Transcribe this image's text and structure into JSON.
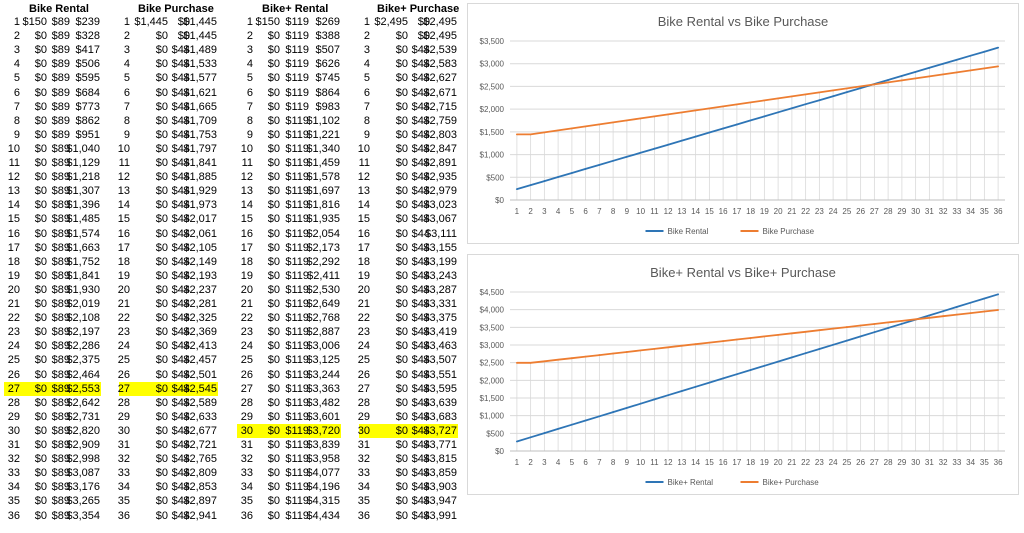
{
  "tables": [
    {
      "title": "Bike Rental",
      "highlight": [
        27
      ],
      "rows": [
        [
          "1",
          "$150",
          "$89",
          "$239"
        ],
        [
          "2",
          "$0",
          "$89",
          "$328"
        ],
        [
          "3",
          "$0",
          "$89",
          "$417"
        ],
        [
          "4",
          "$0",
          "$89",
          "$506"
        ],
        [
          "5",
          "$0",
          "$89",
          "$595"
        ],
        [
          "6",
          "$0",
          "$89",
          "$684"
        ],
        [
          "7",
          "$0",
          "$89",
          "$773"
        ],
        [
          "8",
          "$0",
          "$89",
          "$862"
        ],
        [
          "9",
          "$0",
          "$89",
          "$951"
        ],
        [
          "10",
          "$0",
          "$89",
          "$1,040"
        ],
        [
          "11",
          "$0",
          "$89",
          "$1,129"
        ],
        [
          "12",
          "$0",
          "$89",
          "$1,218"
        ],
        [
          "13",
          "$0",
          "$89",
          "$1,307"
        ],
        [
          "14",
          "$0",
          "$89",
          "$1,396"
        ],
        [
          "15",
          "$0",
          "$89",
          "$1,485"
        ],
        [
          "16",
          "$0",
          "$89",
          "$1,574"
        ],
        [
          "17",
          "$0",
          "$89",
          "$1,663"
        ],
        [
          "18",
          "$0",
          "$89",
          "$1,752"
        ],
        [
          "19",
          "$0",
          "$89",
          "$1,841"
        ],
        [
          "20",
          "$0",
          "$89",
          "$1,930"
        ],
        [
          "21",
          "$0",
          "$89",
          "$2,019"
        ],
        [
          "22",
          "$0",
          "$89",
          "$2,108"
        ],
        [
          "23",
          "$0",
          "$89",
          "$2,197"
        ],
        [
          "24",
          "$0",
          "$89",
          "$2,286"
        ],
        [
          "25",
          "$0",
          "$89",
          "$2,375"
        ],
        [
          "26",
          "$0",
          "$89",
          "$2,464"
        ],
        [
          "27",
          "$0",
          "$89",
          "$2,553"
        ],
        [
          "28",
          "$0",
          "$89",
          "$2,642"
        ],
        [
          "29",
          "$0",
          "$89",
          "$2,731"
        ],
        [
          "30",
          "$0",
          "$89",
          "$2,820"
        ],
        [
          "31",
          "$0",
          "$89",
          "$2,909"
        ],
        [
          "32",
          "$0",
          "$89",
          "$2,998"
        ],
        [
          "33",
          "$0",
          "$89",
          "$3,087"
        ],
        [
          "34",
          "$0",
          "$89",
          "$3,176"
        ],
        [
          "35",
          "$0",
          "$89",
          "$3,265"
        ],
        [
          "36",
          "$0",
          "$89",
          "$3,354"
        ]
      ]
    },
    {
      "title": "Bike Purchase",
      "highlight": [
        27
      ],
      "rows": [
        [
          "1",
          "$1,445",
          "$0",
          "$1,445"
        ],
        [
          "2",
          "$0",
          "$0",
          "$1,445"
        ],
        [
          "3",
          "$0",
          "$44",
          "$1,489"
        ],
        [
          "4",
          "$0",
          "$44",
          "$1,533"
        ],
        [
          "5",
          "$0",
          "$44",
          "$1,577"
        ],
        [
          "6",
          "$0",
          "$44",
          "$1,621"
        ],
        [
          "7",
          "$0",
          "$44",
          "$1,665"
        ],
        [
          "8",
          "$0",
          "$44",
          "$1,709"
        ],
        [
          "9",
          "$0",
          "$44",
          "$1,753"
        ],
        [
          "10",
          "$0",
          "$44",
          "$1,797"
        ],
        [
          "11",
          "$0",
          "$44",
          "$1,841"
        ],
        [
          "12",
          "$0",
          "$44",
          "$1,885"
        ],
        [
          "13",
          "$0",
          "$44",
          "$1,929"
        ],
        [
          "14",
          "$0",
          "$44",
          "$1,973"
        ],
        [
          "15",
          "$0",
          "$44",
          "$2,017"
        ],
        [
          "16",
          "$0",
          "$44",
          "$2,061"
        ],
        [
          "17",
          "$0",
          "$44",
          "$2,105"
        ],
        [
          "18",
          "$0",
          "$44",
          "$2,149"
        ],
        [
          "19",
          "$0",
          "$44",
          "$2,193"
        ],
        [
          "20",
          "$0",
          "$44",
          "$2,237"
        ],
        [
          "21",
          "$0",
          "$44",
          "$2,281"
        ],
        [
          "22",
          "$0",
          "$44",
          "$2,325"
        ],
        [
          "23",
          "$0",
          "$44",
          "$2,369"
        ],
        [
          "24",
          "$0",
          "$44",
          "$2,413"
        ],
        [
          "25",
          "$0",
          "$44",
          "$2,457"
        ],
        [
          "26",
          "$0",
          "$44",
          "$2,501"
        ],
        [
          "27",
          "$0",
          "$44",
          "$2,545"
        ],
        [
          "28",
          "$0",
          "$44",
          "$2,589"
        ],
        [
          "29",
          "$0",
          "$44",
          "$2,633"
        ],
        [
          "30",
          "$0",
          "$44",
          "$2,677"
        ],
        [
          "31",
          "$0",
          "$44",
          "$2,721"
        ],
        [
          "32",
          "$0",
          "$44",
          "$2,765"
        ],
        [
          "33",
          "$0",
          "$44",
          "$2,809"
        ],
        [
          "34",
          "$0",
          "$44",
          "$2,853"
        ],
        [
          "35",
          "$0",
          "$44",
          "$2,897"
        ],
        [
          "36",
          "$0",
          "$44",
          "$2,941"
        ]
      ]
    },
    {
      "title": "Bike+ Rental",
      "highlight": [
        30
      ],
      "rows": [
        [
          "1",
          "$150",
          "$119",
          "$269"
        ],
        [
          "2",
          "$0",
          "$119",
          "$388"
        ],
        [
          "3",
          "$0",
          "$119",
          "$507"
        ],
        [
          "4",
          "$0",
          "$119",
          "$626"
        ],
        [
          "5",
          "$0",
          "$119",
          "$745"
        ],
        [
          "6",
          "$0",
          "$119",
          "$864"
        ],
        [
          "7",
          "$0",
          "$119",
          "$983"
        ],
        [
          "8",
          "$0",
          "$119",
          "$1,102"
        ],
        [
          "9",
          "$0",
          "$119",
          "$1,221"
        ],
        [
          "10",
          "$0",
          "$119",
          "$1,340"
        ],
        [
          "11",
          "$0",
          "$119",
          "$1,459"
        ],
        [
          "12",
          "$0",
          "$119",
          "$1,578"
        ],
        [
          "13",
          "$0",
          "$119",
          "$1,697"
        ],
        [
          "14",
          "$0",
          "$119",
          "$1,816"
        ],
        [
          "15",
          "$0",
          "$119",
          "$1,935"
        ],
        [
          "16",
          "$0",
          "$119",
          "$2,054"
        ],
        [
          "17",
          "$0",
          "$119",
          "$2,173"
        ],
        [
          "18",
          "$0",
          "$119",
          "$2,292"
        ],
        [
          "19",
          "$0",
          "$119",
          "$2,411"
        ],
        [
          "20",
          "$0",
          "$119",
          "$2,530"
        ],
        [
          "21",
          "$0",
          "$119",
          "$2,649"
        ],
        [
          "22",
          "$0",
          "$119",
          "$2,768"
        ],
        [
          "23",
          "$0",
          "$119",
          "$2,887"
        ],
        [
          "24",
          "$0",
          "$119",
          "$3,006"
        ],
        [
          "25",
          "$0",
          "$119",
          "$3,125"
        ],
        [
          "26",
          "$0",
          "$119",
          "$3,244"
        ],
        [
          "27",
          "$0",
          "$119",
          "$3,363"
        ],
        [
          "28",
          "$0",
          "$119",
          "$3,482"
        ],
        [
          "29",
          "$0",
          "$119",
          "$3,601"
        ],
        [
          "30",
          "$0",
          "$119",
          "$3,720"
        ],
        [
          "31",
          "$0",
          "$119",
          "$3,839"
        ],
        [
          "32",
          "$0",
          "$119",
          "$3,958"
        ],
        [
          "33",
          "$0",
          "$119",
          "$4,077"
        ],
        [
          "34",
          "$0",
          "$119",
          "$4,196"
        ],
        [
          "35",
          "$0",
          "$119",
          "$4,315"
        ],
        [
          "36",
          "$0",
          "$119",
          "$4,434"
        ]
      ]
    },
    {
      "title": "Bike+ Purchase",
      "highlight": [
        30
      ],
      "rows": [
        [
          "1",
          "$2,495",
          "$0",
          "$2,495"
        ],
        [
          "2",
          "$0",
          "$0",
          "$2,495"
        ],
        [
          "3",
          "$0",
          "$44",
          "$2,539"
        ],
        [
          "4",
          "$0",
          "$44",
          "$2,583"
        ],
        [
          "5",
          "$0",
          "$44",
          "$2,627"
        ],
        [
          "6",
          "$0",
          "$44",
          "$2,671"
        ],
        [
          "7",
          "$0",
          "$44",
          "$2,715"
        ],
        [
          "8",
          "$0",
          "$44",
          "$2,759"
        ],
        [
          "9",
          "$0",
          "$44",
          "$2,803"
        ],
        [
          "10",
          "$0",
          "$44",
          "$2,847"
        ],
        [
          "11",
          "$0",
          "$44",
          "$2,891"
        ],
        [
          "12",
          "$0",
          "$44",
          "$2,935"
        ],
        [
          "13",
          "$0",
          "$44",
          "$2,979"
        ],
        [
          "14",
          "$0",
          "$44",
          "$3,023"
        ],
        [
          "15",
          "$0",
          "$44",
          "$3,067"
        ],
        [
          "16",
          "$0",
          "$44",
          "$3,111"
        ],
        [
          "17",
          "$0",
          "$44",
          "$3,155"
        ],
        [
          "18",
          "$0",
          "$44",
          "$3,199"
        ],
        [
          "19",
          "$0",
          "$44",
          "$3,243"
        ],
        [
          "20",
          "$0",
          "$44",
          "$3,287"
        ],
        [
          "21",
          "$0",
          "$44",
          "$3,331"
        ],
        [
          "22",
          "$0",
          "$44",
          "$3,375"
        ],
        [
          "23",
          "$0",
          "$44",
          "$3,419"
        ],
        [
          "24",
          "$0",
          "$44",
          "$3,463"
        ],
        [
          "25",
          "$0",
          "$44",
          "$3,507"
        ],
        [
          "26",
          "$0",
          "$44",
          "$3,551"
        ],
        [
          "27",
          "$0",
          "$44",
          "$3,595"
        ],
        [
          "28",
          "$0",
          "$44",
          "$3,639"
        ],
        [
          "29",
          "$0",
          "$44",
          "$3,683"
        ],
        [
          "30",
          "$0",
          "$44",
          "$3,727"
        ],
        [
          "31",
          "$0",
          "$44",
          "$3,771"
        ],
        [
          "32",
          "$0",
          "$44",
          "$3,815"
        ],
        [
          "33",
          "$0",
          "$44",
          "$3,859"
        ],
        [
          "34",
          "$0",
          "$44",
          "$3,903"
        ],
        [
          "35",
          "$0",
          "$44",
          "$3,947"
        ],
        [
          "36",
          "$0",
          "$44",
          "$3,991"
        ]
      ]
    }
  ],
  "colors": {
    "highlight": "#ffff00",
    "blue": "#2e75b6",
    "orange": "#ed7d31",
    "grid": "#d9d9d9",
    "axis_text": "#595959"
  },
  "chart_data": [
    {
      "type": "line",
      "title": "Bike Rental vs Bike Purchase",
      "x": [
        1,
        2,
        3,
        4,
        5,
        6,
        7,
        8,
        9,
        10,
        11,
        12,
        13,
        14,
        15,
        16,
        17,
        18,
        19,
        20,
        21,
        22,
        23,
        24,
        25,
        26,
        27,
        28,
        29,
        30,
        31,
        32,
        33,
        34,
        35,
        36
      ],
      "ylim": [
        0,
        3500
      ],
      "yticks": [
        0,
        500,
        1000,
        1500,
        2000,
        2500,
        3000,
        3500
      ],
      "ytick_labels": [
        "$0",
        "$500",
        "$1,000",
        "$1,500",
        "$2,000",
        "$2,500",
        "$3,000",
        "$3,500"
      ],
      "legend": "bottom",
      "vertical_gridlines": true,
      "series": [
        {
          "name": "Bike Rental",
          "color": "#2e75b6",
          "values": [
            239,
            328,
            417,
            506,
            595,
            684,
            773,
            862,
            951,
            1040,
            1129,
            1218,
            1307,
            1396,
            1485,
            1574,
            1663,
            1752,
            1841,
            1930,
            2019,
            2108,
            2197,
            2286,
            2375,
            2464,
            2553,
            2642,
            2731,
            2820,
            2909,
            2998,
            3087,
            3176,
            3265,
            3354
          ]
        },
        {
          "name": "Bike Purchase",
          "color": "#ed7d31",
          "values": [
            1445,
            1445,
            1489,
            1533,
            1577,
            1621,
            1665,
            1709,
            1753,
            1797,
            1841,
            1885,
            1929,
            1973,
            2017,
            2061,
            2105,
            2149,
            2193,
            2237,
            2281,
            2325,
            2369,
            2413,
            2457,
            2501,
            2545,
            2589,
            2633,
            2677,
            2721,
            2765,
            2809,
            2853,
            2897,
            2941
          ]
        }
      ]
    },
    {
      "type": "line",
      "title": "Bike+ Rental vs Bike+ Purchase",
      "x": [
        1,
        2,
        3,
        4,
        5,
        6,
        7,
        8,
        9,
        10,
        11,
        12,
        13,
        14,
        15,
        16,
        17,
        18,
        19,
        20,
        21,
        22,
        23,
        24,
        25,
        26,
        27,
        28,
        29,
        30,
        31,
        32,
        33,
        34,
        35,
        36
      ],
      "ylim": [
        0,
        4500
      ],
      "yticks": [
        0,
        500,
        1000,
        1500,
        2000,
        2500,
        3000,
        3500,
        4000,
        4500
      ],
      "ytick_labels": [
        "$0",
        "$500",
        "$1,000",
        "$1,500",
        "$2,000",
        "$2,500",
        "$3,000",
        "$3,500",
        "$4,000",
        "$4,500"
      ],
      "legend": "bottom",
      "vertical_gridlines": true,
      "series": [
        {
          "name": "Bike+ Rental",
          "color": "#2e75b6",
          "values": [
            269,
            388,
            507,
            626,
            745,
            864,
            983,
            1102,
            1221,
            1340,
            1459,
            1578,
            1697,
            1816,
            1935,
            2054,
            2173,
            2292,
            2411,
            2530,
            2649,
            2768,
            2887,
            3006,
            3125,
            3244,
            3363,
            3482,
            3601,
            3720,
            3839,
            3958,
            4077,
            4196,
            4315,
            4434
          ]
        },
        {
          "name": "Bike+ Purchase",
          "color": "#ed7d31",
          "values": [
            2495,
            2495,
            2539,
            2583,
            2627,
            2671,
            2715,
            2759,
            2803,
            2847,
            2891,
            2935,
            2979,
            3023,
            3067,
            3111,
            3155,
            3199,
            3243,
            3287,
            3331,
            3375,
            3419,
            3463,
            3507,
            3551,
            3595,
            3639,
            3683,
            3727,
            3771,
            3815,
            3859,
            3903,
            3947,
            3991
          ]
        }
      ]
    }
  ]
}
